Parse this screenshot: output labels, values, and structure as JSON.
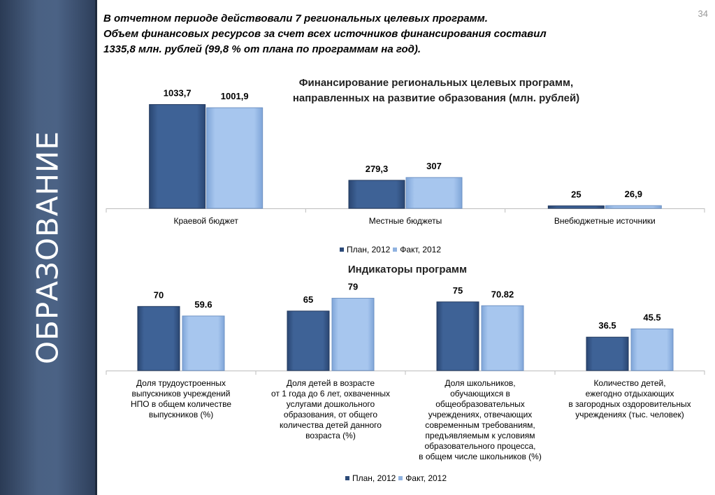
{
  "page_number": "34",
  "sidebar": {
    "title": "ОБРАЗОВАНИЕ"
  },
  "intro": {
    "lines": [
      "В отчетном периоде действовали 7 региональных целевых программ.",
      "Объем финансовых ресурсов за счет всех источников финансирования составил",
      "1335,8 млн. рублей (99,8 % от плана по программам на год)."
    ]
  },
  "colors": {
    "plan": "#3e6296",
    "fact": "#a7c6ee",
    "sidebar": "#4a6183"
  },
  "chart_data": [
    {
      "type": "bar",
      "title": [
        "Финансирование региональных целевых программ,",
        "направленных на развитие образования (млн. рублей)"
      ],
      "categories": [
        "Краевой бюджет",
        "Местные бюджеты",
        "Внебюджетные источники"
      ],
      "series": [
        {
          "name": "План, 2012",
          "values": [
            1033.7,
            279.3,
            25
          ],
          "labels": [
            "1033,7",
            "279,3",
            "25"
          ]
        },
        {
          "name": "Факт, 2012",
          "values": [
            1001.9,
            307,
            26.9
          ],
          "labels": [
            "1001,9",
            "307",
            "26,9"
          ]
        }
      ],
      "ylim": [
        0,
        1100
      ],
      "legend": "bottom",
      "grid": false
    },
    {
      "type": "bar",
      "title": [
        "Индикаторы программ"
      ],
      "categories": [
        [
          "Доля трудоустроенных",
          "выпускников учреждений",
          "НПО в общем количестве",
          "выпускников (%)"
        ],
        [
          "Доля детей в возрасте",
          "от 1 года до 6 лет, охваченных",
          "услугами дошкольного",
          "образования, от общего",
          "количества детей данного",
          "возраста (%)"
        ],
        [
          "Доля школьников,",
          "обучающихся в",
          "общеобразовательных",
          "учреждениях, отвечающих",
          "современным требованиям,",
          "предъявляемым к условиям",
          "образовательного процесса,",
          "в общем числе школьников (%)"
        ],
        [
          "Количество детей,",
          "ежегодно отдыхающих",
          "в загородных оздоровительных",
          "учреждениях (тыс. человек)"
        ]
      ],
      "series": [
        {
          "name": "План, 2012",
          "values": [
            70,
            65,
            75,
            36.5
          ],
          "labels": [
            "70",
            "65",
            "75",
            "36.5"
          ]
        },
        {
          "name": "Факт, 2012",
          "values": [
            59.6,
            79,
            70.82,
            45.5
          ],
          "labels": [
            "59.6",
            "79",
            "70.82",
            "45.5"
          ]
        }
      ],
      "ylim": [
        0,
        84
      ],
      "legend": "bottom",
      "grid": false
    }
  ]
}
